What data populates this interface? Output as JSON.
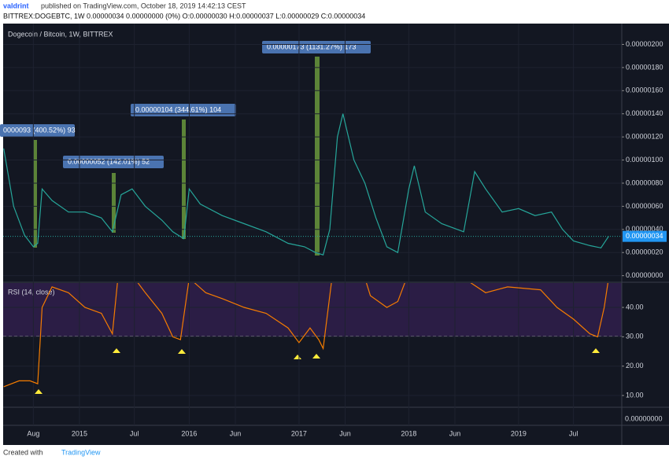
{
  "header": {
    "author": "valdrint",
    "published": "published on TradingView.com, October 18, 2019 14:42:13 CEST",
    "symbol_line": "BITTREX:DOGEBTC, 1W 0.00000034 0.00000000 (0%) O:0.00000030 H:0.00000037 L:0.00000029 C:0.00000034"
  },
  "chart_title": "Dogecoin / Bitcoin, 1W, BITTREX",
  "chart_data": [
    {
      "type": "line",
      "name": "price",
      "color": "#26a69a",
      "x": [
        2014.31,
        2014.4,
        2014.5,
        2014.58,
        2014.62,
        2014.66,
        2014.75,
        2014.9,
        2015.05,
        2015.2,
        2015.3,
        2015.38,
        2015.48,
        2015.6,
        2015.75,
        2015.85,
        2015.95,
        2016.0,
        2016.1,
        2016.3,
        2016.5,
        2016.7,
        2016.9,
        2017.05,
        2017.15,
        2017.22,
        2017.28,
        2017.35,
        2017.4,
        2017.5,
        2017.6,
        2017.7,
        2017.8,
        2017.9,
        2018.0,
        2018.05,
        2018.15,
        2018.3,
        2018.5,
        2018.6,
        2018.7,
        2018.85,
        2019.0,
        2019.15,
        2019.3,
        2019.4,
        2019.5,
        2019.65,
        2019.75,
        2019.82
      ],
      "values": [
        1.1e-06,
        6e-07,
        3.5e-07,
        2.5e-07,
        2.8e-07,
        7.5e-07,
        6.5e-07,
        5.5e-07,
        5.5e-07,
        5e-07,
        3.8e-07,
        7e-07,
        7.5e-07,
        6e-07,
        4.8e-07,
        3.8e-07,
        3.2e-07,
        7.5e-07,
        6.2e-07,
        5.2e-07,
        4.5e-07,
        3.8e-07,
        2.8e-07,
        2.5e-07,
        2e-07,
        1.8e-07,
        4e-07,
        1.2e-06,
        1.4e-06,
        1e-06,
        8e-07,
        5e-07,
        2.5e-07,
        2e-07,
        7.5e-07,
        9.5e-07,
        5.5e-07,
        4.5e-07,
        3.8e-07,
        9e-07,
        7.5e-07,
        5.5e-07,
        5.8e-07,
        5.2e-07,
        5.5e-07,
        4e-07,
        3e-07,
        2.6e-07,
        2.4e-07,
        3.4e-07
      ],
      "xlim": [
        2014.305,
        2019.94
      ],
      "xticks": [
        {
          "value": 2014.58,
          "label": "Aug"
        },
        {
          "value": 2015,
          "label": "2015"
        },
        {
          "value": 2015.5,
          "label": "Jul"
        },
        {
          "value": 2016,
          "label": "2016"
        },
        {
          "value": 2016.42,
          "label": "Jun"
        },
        {
          "value": 2017,
          "label": "2017"
        },
        {
          "value": 2017.42,
          "label": "Jun"
        },
        {
          "value": 2018,
          "label": "2018"
        },
        {
          "value": 2018.42,
          "label": "Jun"
        },
        {
          "value": 2019,
          "label": "2019"
        },
        {
          "value": 2019.5,
          "label": "Jul"
        }
      ],
      "ylim": [
        -5e-08,
        2.18e-06
      ],
      "yticks": [
        {
          "value": 0,
          "label": "0.00000000"
        },
        {
          "value": 2e-07,
          "label": "0.00000020"
        },
        {
          "value": 4e-07,
          "label": "0.00000040"
        },
        {
          "value": 6e-07,
          "label": "0.00000060"
        },
        {
          "value": 8e-07,
          "label": "0.00000080"
        },
        {
          "value": 1e-06,
          "label": "0.00000100"
        },
        {
          "value": 1.2e-06,
          "label": "0.00000120"
        },
        {
          "value": 1.4e-06,
          "label": "0.00000140"
        },
        {
          "value": 1.6e-06,
          "label": "0.00000160"
        },
        {
          "value": 1.8e-06,
          "label": "0.00000180"
        },
        {
          "value": 2e-06,
          "label": "0.00000200"
        }
      ],
      "last_price": {
        "value": 3.4e-07,
        "label": "0.00000034"
      }
    },
    {
      "type": "line",
      "name": "RSI (14, close)",
      "color": "#f57c00",
      "x": [
        2014.31,
        2014.45,
        2014.55,
        2014.62,
        2014.66,
        2014.75,
        2014.9,
        2015.05,
        2015.2,
        2015.3,
        2015.35,
        2015.5,
        2015.6,
        2015.75,
        2015.85,
        2015.92,
        2016.0,
        2016.15,
        2016.3,
        2016.5,
        2016.7,
        2016.9,
        2017.0,
        2017.1,
        2017.18,
        2017.22,
        2017.3,
        2017.6,
        2017.65,
        2017.8,
        2017.9,
        2017.98,
        2018.5,
        2018.7,
        2018.9,
        2019.2,
        2019.35,
        2019.5,
        2019.65,
        2019.72,
        2019.78,
        2019.82
      ],
      "values": [
        13,
        15,
        15,
        14,
        40,
        47,
        45,
        40,
        38,
        31,
        50,
        50,
        45,
        38,
        30,
        29,
        50,
        45,
        43,
        40,
        38,
        33,
        28,
        33,
        29,
        26,
        50,
        50,
        44,
        40,
        42,
        50,
        50,
        45,
        47,
        46,
        40,
        36,
        31,
        30,
        40,
        50
      ],
      "ylim": [
        6,
        48.3
      ],
      "yticks": [
        {
          "value": 10,
          "label": "10.00"
        },
        {
          "value": 20,
          "label": "20.00"
        },
        {
          "value": 30,
          "label": "30.00"
        },
        {
          "value": 40,
          "label": "40.00"
        }
      ]
    }
  ],
  "annotations": [
    "0000093 (400.52%) 93",
    "0.00000052 (142.01%) 52",
    "0.00000104 (344.61%) 104",
    "0.00000173 (1131.27%) 173"
  ],
  "lower_pane_label": "0.00000000",
  "footer": {
    "created": "Created with",
    "brand": "TradingView"
  }
}
